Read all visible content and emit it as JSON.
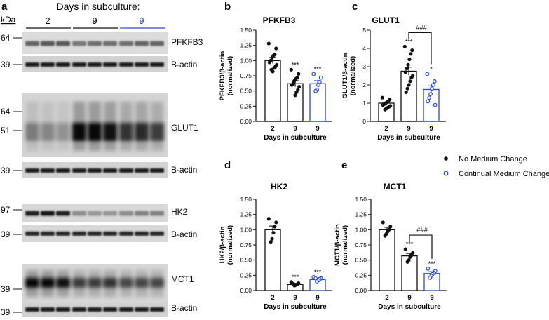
{
  "figure": {
    "blot": {
      "panel_letter": "a",
      "header": "Days in subculture:",
      "units_label": "kDa",
      "group_labels": [
        "2",
        "9",
        "9"
      ],
      "group_colors": [
        "#111111",
        "#111111",
        "#2a47d8"
      ],
      "rows": [
        {
          "marker": "64",
          "label": "PFKFB3",
          "band_intensity": [
            0.55,
            0.6,
            0.6,
            0.45,
            0.5,
            0.5,
            0.5,
            0.55,
            0.55
          ]
        },
        {
          "marker": "39",
          "label": "B-actin",
          "band_intensity": [
            0.9,
            0.9,
            0.9,
            0.9,
            0.9,
            0.9,
            0.9,
            0.9,
            0.9
          ]
        },
        {
          "markers": [
            "64",
            "51"
          ],
          "label": "GLUT1",
          "band_intensity": [
            0.35,
            0.3,
            0.25,
            0.95,
            0.95,
            0.9,
            0.7,
            0.75,
            0.65
          ]
        },
        {
          "marker": "39",
          "label": "B-actin",
          "band_intensity": [
            0.9,
            0.9,
            0.9,
            0.9,
            0.9,
            0.9,
            0.9,
            0.9,
            0.9
          ]
        },
        {
          "marker": "97",
          "label": "HK2",
          "band_intensity": [
            0.85,
            0.9,
            0.85,
            0.35,
            0.3,
            0.3,
            0.35,
            0.4,
            0.4
          ]
        },
        {
          "marker": "39",
          "label": "B-actin",
          "band_intensity": [
            0.85,
            0.85,
            0.85,
            0.85,
            0.85,
            0.85,
            0.85,
            0.85,
            0.85
          ]
        },
        {
          "marker": "39",
          "label": "MCT1",
          "band_intensity": [
            0.95,
            0.95,
            0.9,
            0.65,
            0.65,
            0.7,
            0.6,
            0.6,
            0.6
          ]
        },
        {
          "marker": "39",
          "label": "B-actin",
          "band_intensity": [
            0.9,
            0.9,
            0.9,
            0.9,
            0.9,
            0.9,
            0.9,
            0.9,
            0.9
          ]
        }
      ]
    },
    "legend": {
      "entries": [
        {
          "label": "No Medium Change",
          "style": "filled"
        },
        {
          "label": "Continual Medium Changes",
          "style": "open-blue"
        }
      ]
    }
  },
  "chart_data": [
    {
      "type": "bar",
      "panel_letter": "b",
      "title": "PFKFB3",
      "ylabel_line1": "PFKFB3/β-actin",
      "ylabel_line2": "(normalized)",
      "xlabel": "Days in subculture",
      "categories": [
        "2",
        "9",
        "9"
      ],
      "values": [
        1.0,
        0.62,
        0.62
      ],
      "errors": [
        0.05,
        0.05,
        0.05
      ],
      "ylim": [
        0,
        1.5
      ],
      "yticks": [
        "0.00",
        "0.25",
        "0.50",
        "0.75",
        "1.00",
        "1.25",
        "1.50"
      ],
      "points": [
        [
          1.28,
          1.2,
          1.1,
          1.08,
          1.05,
          1.0,
          0.97,
          0.93,
          0.9,
          0.88,
          0.82,
          0.85
        ],
        [
          0.85,
          0.78,
          0.72,
          0.7,
          0.67,
          0.62,
          0.6,
          0.57,
          0.52,
          0.48,
          0.43,
          0.65
        ],
        [
          0.78,
          0.72,
          0.65,
          0.6,
          0.52,
          0.5
        ]
      ],
      "point_styles": [
        "filled",
        "filled",
        "open-blue"
      ],
      "annotations": [
        "",
        "***",
        "***"
      ]
    },
    {
      "type": "bar",
      "panel_letter": "c",
      "title": "GLUT1",
      "ylabel_line1": "GLUT1/β-actin",
      "ylabel_line2": "(normalized)",
      "xlabel": "Days in subculture",
      "categories": [
        "2",
        "9",
        "9"
      ],
      "values": [
        1.0,
        2.75,
        1.75
      ],
      "errors": [
        0.06,
        0.22,
        0.2
      ],
      "ylim": [
        0,
        5
      ],
      "yticks": [
        "0",
        "1",
        "2",
        "3",
        "4",
        "5"
      ],
      "points": [
        [
          1.3,
          1.2,
          1.1,
          1.05,
          1.0,
          0.95,
          0.9,
          0.85,
          0.8,
          0.75,
          0.7,
          0.65
        ],
        [
          4.1,
          3.9,
          3.7,
          3.4,
          3.1,
          2.9,
          2.7,
          2.5,
          2.4,
          2.2,
          2.0,
          1.8,
          1.6
        ],
        [
          2.6,
          2.2,
          2.0,
          1.8,
          1.5,
          1.3,
          1.1,
          0.9
        ]
      ],
      "point_styles": [
        "filled",
        "filled",
        "open-blue"
      ],
      "annotations": [
        "",
        "***",
        "*"
      ],
      "bracket_label": "###"
    },
    {
      "type": "bar",
      "panel_letter": "d",
      "title": "HK2",
      "ylabel_line1": "HK2/β-actin",
      "ylabel_line2": "(normalized)",
      "xlabel": "Days in subculture",
      "categories": [
        "2",
        "9",
        "9"
      ],
      "values": [
        1.0,
        0.1,
        0.18
      ],
      "errors": [
        0.06,
        0.02,
        0.02
      ],
      "ylim": [
        0,
        1.5
      ],
      "yticks": [
        "0.00",
        "0.25",
        "0.50",
        "0.75",
        "1.00",
        "1.25",
        "1.50"
      ],
      "points": [
        [
          1.18,
          1.12,
          1.05,
          0.95,
          0.85,
          0.8
        ],
        [
          0.14,
          0.12,
          0.1,
          0.09,
          0.08,
          0.11
        ],
        [
          0.22,
          0.2,
          0.19,
          0.17,
          0.15,
          0.2
        ]
      ],
      "point_styles": [
        "filled",
        "filled",
        "open-blue"
      ],
      "annotations": [
        "",
        "***",
        "***"
      ]
    },
    {
      "type": "bar",
      "panel_letter": "e",
      "title": "MCT1",
      "ylabel_line1": "MCT1/β-actin",
      "ylabel_line2": "(normalized)",
      "xlabel": "Days in subculture",
      "categories": [
        "2",
        "9",
        "9"
      ],
      "values": [
        1.0,
        0.57,
        0.28
      ],
      "errors": [
        0.04,
        0.04,
        0.03
      ],
      "ylim": [
        0,
        1.5
      ],
      "yticks": [
        "0.00",
        "0.25",
        "0.50",
        "0.75",
        "1.00",
        "1.25",
        "1.50"
      ],
      "points": [
        [
          1.12,
          1.05,
          1.0,
          0.97,
          0.93,
          0.9
        ],
        [
          0.68,
          0.62,
          0.58,
          0.55,
          0.5,
          0.47
        ],
        [
          0.36,
          0.32,
          0.29,
          0.27,
          0.24,
          0.21
        ]
      ],
      "point_styles": [
        "filled",
        "filled",
        "open-blue"
      ],
      "annotations": [
        "",
        "***",
        "***"
      ],
      "bracket_label": "###"
    }
  ]
}
